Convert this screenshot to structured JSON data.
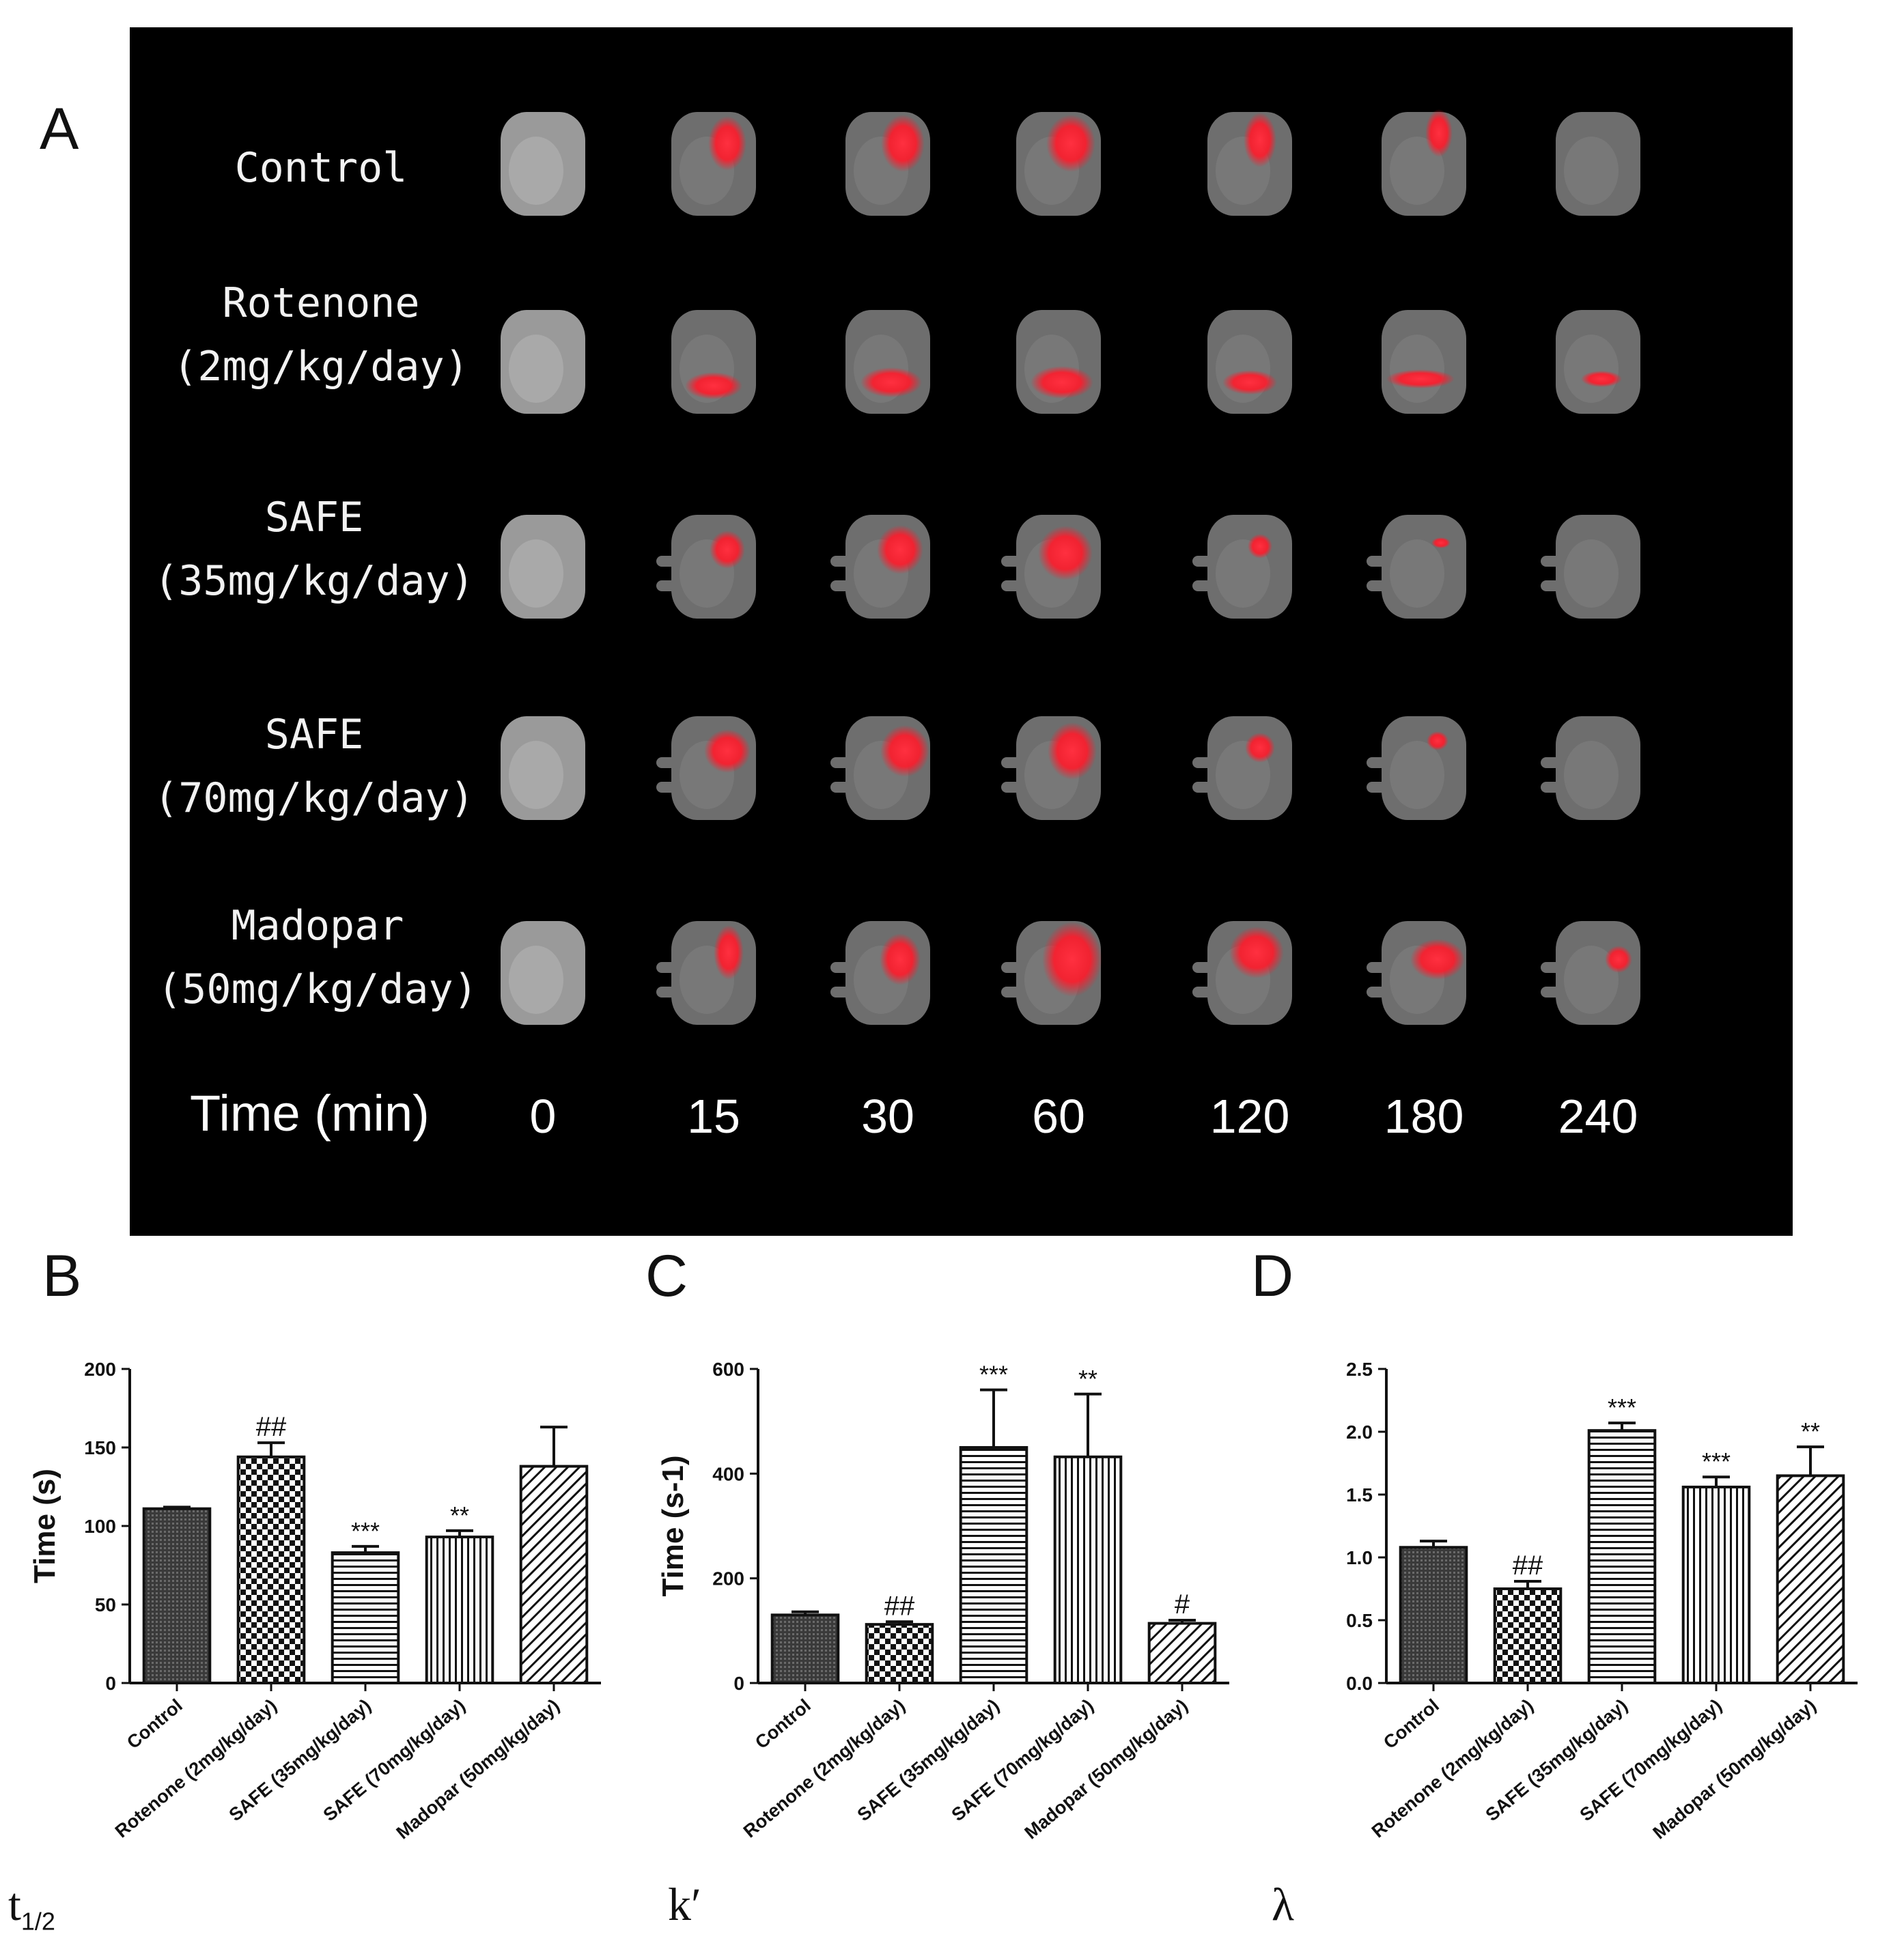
{
  "panel_letters": {
    "a": "A",
    "b": "B",
    "c": "C",
    "d": "D"
  },
  "panelA": {
    "row_labels": [
      "Control",
      "Rotenone\n(2mg/kg/day)",
      "SAFE\n(35mg/kg/day)",
      "SAFE\n(70mg/kg/day)",
      "Madopar\n(50mg/kg/day)"
    ],
    "time_label": "Time (min)",
    "time_points": [
      "0",
      "15",
      "30",
      "60",
      "120",
      "180",
      "240"
    ]
  },
  "metric_labels": {
    "b_main": "t",
    "b_sub": "1/2",
    "c": "k′",
    "d": "λ"
  },
  "chart_data": [
    {
      "type": "bar",
      "panel": "B",
      "ylabel": "Time (s)",
      "ylim": [
        0,
        200
      ],
      "yticks": [
        "0",
        "50",
        "100",
        "150",
        "200"
      ],
      "categories": [
        "Control",
        "Rotenone (2mg/kg/day)",
        "SAFE (35mg/kg/day)",
        "SAFE (70mg/kg/day)",
        "Madopar (50mg/kg/day)"
      ],
      "values": [
        111,
        144,
        83,
        93,
        138
      ],
      "errors": [
        1,
        9,
        4,
        4,
        25
      ],
      "annotations": [
        "",
        "##",
        "***",
        "**",
        ""
      ],
      "patterns": [
        "dense",
        "checker",
        "hlines",
        "vlines",
        "diag"
      ]
    },
    {
      "type": "bar",
      "panel": "C",
      "ylabel": "Time (s-1)",
      "ylim": [
        0,
        600
      ],
      "yticks": [
        "0",
        "200",
        "400",
        "600"
      ],
      "categories": [
        "Control",
        "Rotenone (2mg/kg/day)",
        "SAFE (35mg/kg/day)",
        "SAFE (70mg/kg/day)",
        "Madopar (50mg/kg/day)"
      ],
      "values": [
        130,
        112,
        450,
        432,
        114
      ],
      "errors": [
        6,
        5,
        110,
        120,
        6
      ],
      "annotations": [
        "",
        "##",
        "***",
        "**",
        "#"
      ],
      "patterns": [
        "dense",
        "checker",
        "hlines",
        "vlines",
        "diag"
      ]
    },
    {
      "type": "bar",
      "panel": "D",
      "ylabel": "",
      "ylim": [
        0,
        2.5
      ],
      "yticks": [
        "0.0",
        "0.5",
        "1.0",
        "1.5",
        "2.0",
        "2.5"
      ],
      "categories": [
        "Control",
        "Rotenone (2mg/kg/day)",
        "SAFE (35mg/kg/day)",
        "SAFE (70mg/kg/day)",
        "Madopar (50mg/kg/day)"
      ],
      "values": [
        1.08,
        0.75,
        2.01,
        1.56,
        1.65
      ],
      "errors": [
        0.05,
        0.06,
        0.06,
        0.08,
        0.23
      ],
      "annotations": [
        "",
        "##",
        "***",
        "***",
        "**"
      ],
      "patterns": [
        "dense",
        "checker",
        "hlines",
        "vlines",
        "diag"
      ]
    }
  ]
}
